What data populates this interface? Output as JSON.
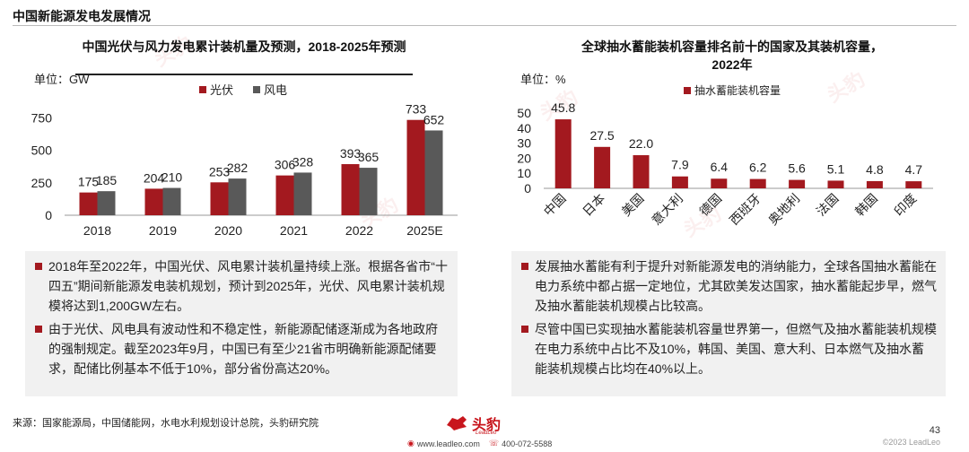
{
  "page": {
    "title": "中国新能源发电发展情况",
    "page_number": "43",
    "copyright": "©2023 LeadLeo",
    "source": "来源：国家能源局，中国储能网，水电水利规划设计总院，头豹研究院"
  },
  "brand": {
    "logo_text": "头豹",
    "logo_sub": "LeadLeo",
    "website": "www.leadleo.com",
    "phone": "400-072-5588",
    "watermark": "头豹",
    "accent_color": "#a3191f"
  },
  "left_chart_title": "中国光伏与风力发电累计装机量及预测，2018-2025年预测",
  "left_unit": "单位：GW",
  "right_chart_title": "全球抽水蓄能装机容量排名前十的国家及其装机容量，2022年",
  "right_unit": "单位：%",
  "chart_data": [
    {
      "type": "bar",
      "categories": [
        "2018",
        "2019",
        "2020",
        "2021",
        "2022",
        "2025E"
      ],
      "series": [
        {
          "name": "光伏",
          "color": "#a3191f",
          "values": [
            175,
            204,
            253,
            306,
            393,
            733
          ]
        },
        {
          "name": "风电",
          "color": "#595959",
          "values": [
            185,
            210,
            282,
            328,
            365,
            652
          ]
        }
      ],
      "y_ticks": [
        "0",
        "250",
        "500",
        "750"
      ],
      "ylim": [
        0,
        800
      ],
      "legend_position": "top"
    },
    {
      "type": "bar",
      "categories": [
        "中国",
        "日本",
        "美国",
        "意大利",
        "德国",
        "西班牙",
        "奥地利",
        "法国",
        "韩国",
        "印度"
      ],
      "series": [
        {
          "name": "抽水蓄能装机容量",
          "color": "#a3191f",
          "values": [
            45.8,
            27.5,
            22.0,
            7.9,
            6.4,
            6.2,
            5.6,
            5.1,
            4.8,
            4.7
          ]
        }
      ],
      "value_labels": [
        "45.8",
        "27.5",
        "22.0",
        "7.9",
        "6.4",
        "6.2",
        "5.6",
        "5.1",
        "4.8",
        "4.7"
      ],
      "y_ticks": [
        "0",
        "10",
        "20",
        "30",
        "40",
        "50"
      ],
      "ylim": [
        0,
        50
      ],
      "legend_position": "top"
    }
  ],
  "left_notes": [
    "2018年至2022年，中国光伏、风电累计装机量持续上涨。根据各省市“十四五”期间新能源发电装机规划，预计到2025年，光伏、风电累计装机规模将达到1,200GW左右。",
    "由于光伏、风电具有波动性和不稳定性，新能源配储逐渐成为各地政府的强制规定。截至2023年9月，中国已有至少21省市明确新能源配储要求，配储比例基本不低于10%，部分省份高达20%。"
  ],
  "right_notes": [
    "发展抽水蓄能有利于提升对新能源发电的消纳能力，全球各国抽水蓄能在电力系统中都占据一定地位，尤其欧美发达国家，抽水蓄能起步早，燃气及抽水蓄能装机规模占比较高。",
    "尽管中国已实现抽水蓄能装机容量世界第一，但燃气及抽水蓄能装机规模在电力系统中占比不及10%，韩国、美国、意大利、日本燃气及抽水蓄能装机规模占比均在40%以上。"
  ]
}
